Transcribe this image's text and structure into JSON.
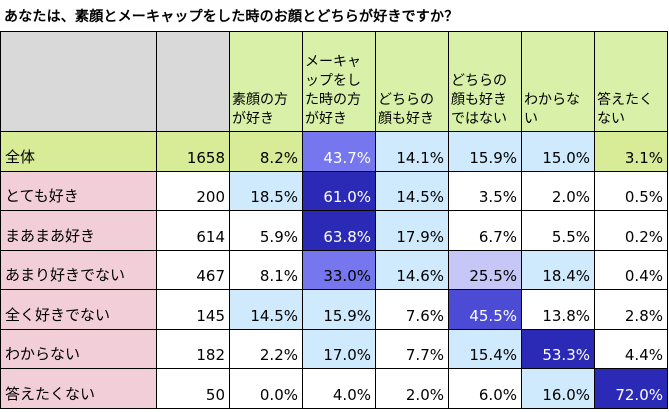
{
  "title": "あなたは、素顔とメーキャップをした時のお顔とどちらが好きですか？",
  "chart_data": {
    "type": "table",
    "columns": [
      "",
      "",
      "素顔の方が好き",
      "メーキャップをした時の方が好き",
      "どちらの顔も好き",
      "どちらの顔も好きではない",
      "わからない",
      "答えたくない"
    ],
    "rows": [
      {
        "label": "全体",
        "n": "1658",
        "values": [
          "8.2%",
          "43.7%",
          "14.1%",
          "15.9%",
          "15.0%",
          "3.1%"
        ]
      },
      {
        "label": "とても好き",
        "n": "200",
        "values": [
          "18.5%",
          "61.0%",
          "14.5%",
          "3.5%",
          "2.0%",
          "0.5%"
        ]
      },
      {
        "label": "まあまあ好き",
        "n": "614",
        "values": [
          "5.9%",
          "63.8%",
          "17.9%",
          "6.7%",
          "5.5%",
          "0.2%"
        ]
      },
      {
        "label": "あまり好きでない",
        "n": "467",
        "values": [
          "8.1%",
          "33.0%",
          "14.6%",
          "25.5%",
          "18.4%",
          "0.4%"
        ]
      },
      {
        "label": "全く好きでない",
        "n": "145",
        "values": [
          "14.5%",
          "15.9%",
          "7.6%",
          "45.5%",
          "13.8%",
          "2.8%"
        ]
      },
      {
        "label": "わからない",
        "n": "182",
        "values": [
          "2.2%",
          "17.0%",
          "7.7%",
          "15.4%",
          "53.3%",
          "4.4%"
        ]
      },
      {
        "label": "答えたくない",
        "n": "50",
        "values": [
          "0.0%",
          "4.0%",
          "2.0%",
          "6.0%",
          "16.0%",
          "72.0%"
        ]
      }
    ]
  },
  "colors": {
    "header_gray": "#d9d9d9",
    "header_green": "#d8f0a8",
    "total_row": "#d8ec98",
    "row_label_pink": "#f2cfd8",
    "heat_light": "#cfeafc",
    "heat_mid_light": "#c6c6f7",
    "heat_mid": "#7676ee",
    "heat_strong": "#4b4bd6",
    "heat_dark": "#2a2ab7",
    "heat_darkest": "#10109a",
    "white": "#ffffff",
    "text_dark": "#000000",
    "text_light": "#ffffff"
  }
}
